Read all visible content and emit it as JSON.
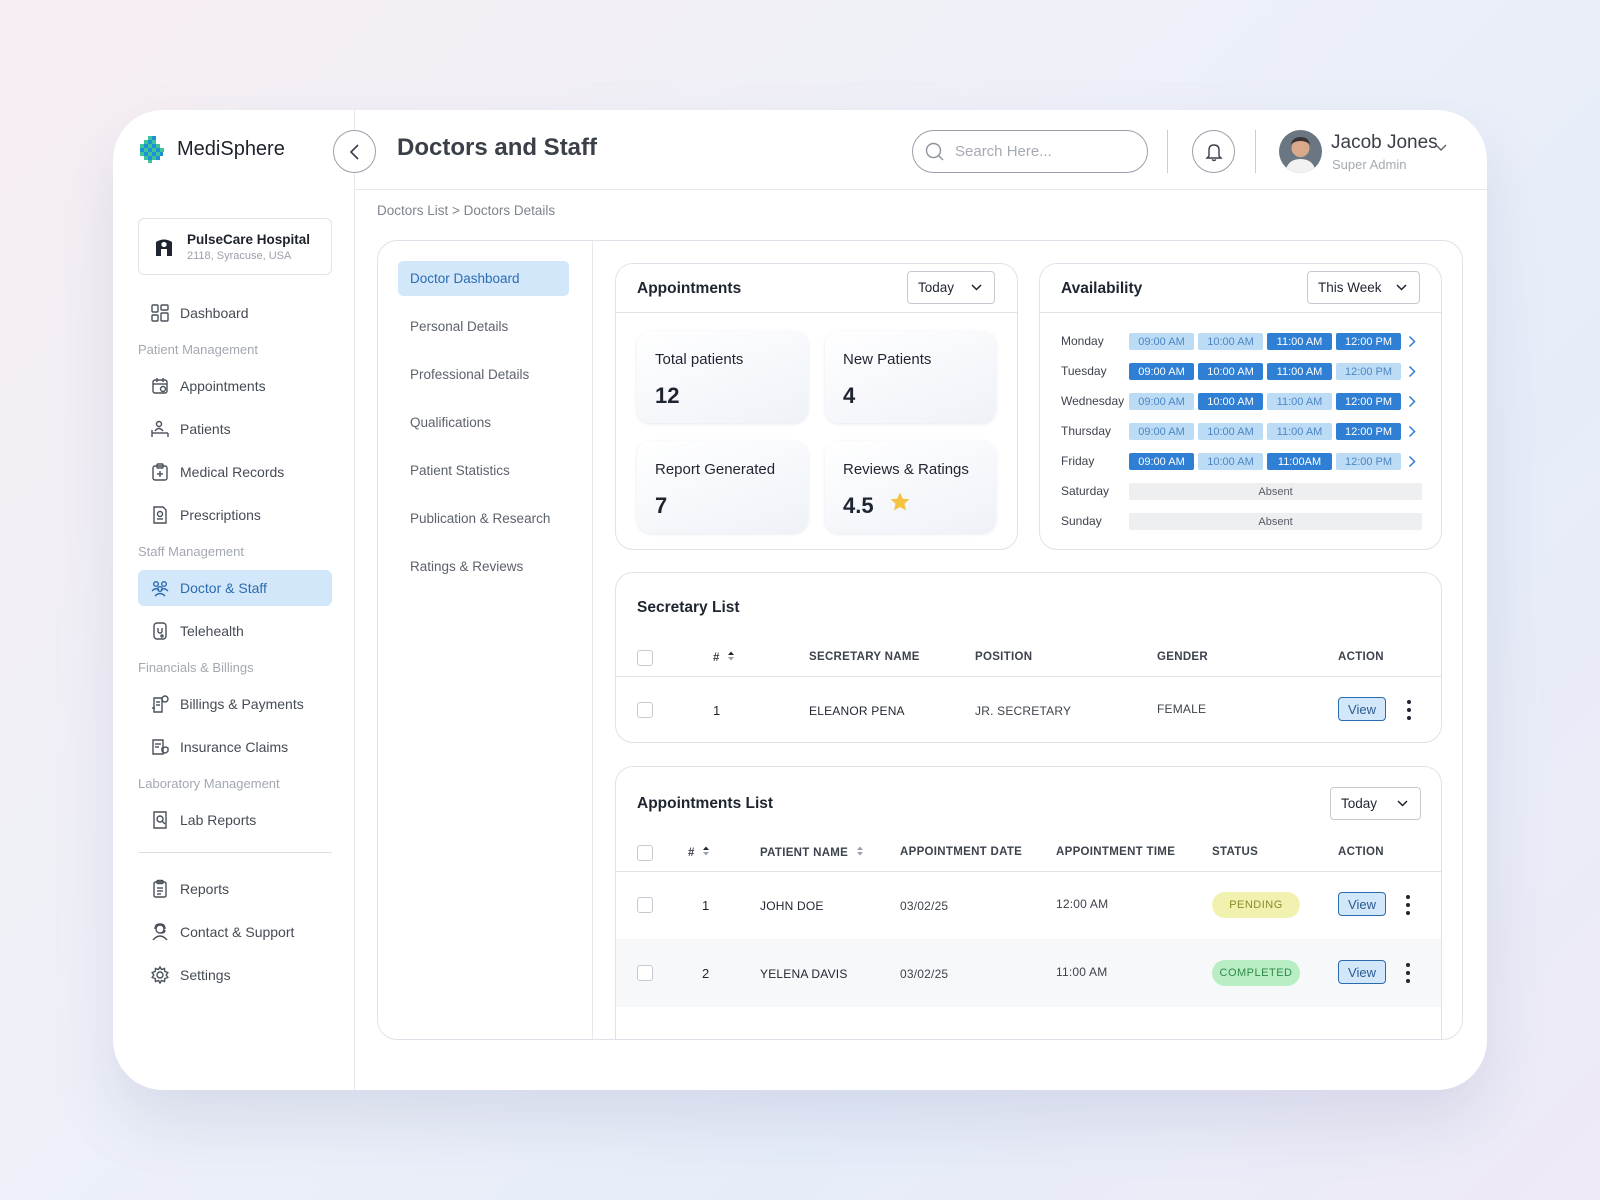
{
  "app": {
    "name": "MediSphere",
    "hospital": {
      "name": "PulseCare Hospital",
      "address": "2118, Syracuse, USA"
    }
  },
  "nav": {
    "dashboard": "Dashboard",
    "patient_section": "Patient Management",
    "appointments": "Appointments",
    "patients": "Patients",
    "medical_records": "Medical Records",
    "prescriptions": "Prescriptions",
    "staff_section": "Staff Management",
    "doctor_staff": "Doctor & Staff",
    "telehealth": "Telehealth",
    "finance_section": "Financials & Billings",
    "billings": "Billings & Payments",
    "insurance": "Insurance Claims",
    "lab_section": "Laboratory Management",
    "lab_reports": "Lab Reports",
    "reports": "Reports",
    "contact": "Contact & Support",
    "settings": "Settings"
  },
  "header": {
    "title": "Doctors and Staff",
    "search_placeholder": "Search Here...",
    "user_name": "Jacob Jones",
    "user_role": "Super Admin"
  },
  "breadcrumb": "Doctors List > Doctors Details",
  "subnav": [
    "Doctor Dashboard",
    "Personal Details",
    "Professional Details",
    "Qualifications",
    "Patient Statistics",
    "Publication & Research",
    "Ratings & Reviews"
  ],
  "appointments_card": {
    "title": "Appointments",
    "filter": "Today",
    "stats": [
      {
        "label": "Total patients",
        "value": "12"
      },
      {
        "label": "New Patients",
        "value": "4"
      },
      {
        "label": "Report Generated",
        "value": "7"
      },
      {
        "label": "Reviews & Ratings",
        "value": "4.5"
      }
    ]
  },
  "availability": {
    "title": "Availability",
    "filter": "This Week",
    "days": [
      {
        "day": "Monday",
        "slots": [
          {
            "t": "09:00 AM",
            "on": false
          },
          {
            "t": "10:00 AM",
            "on": false
          },
          {
            "t": "11:00 AM",
            "on": true
          },
          {
            "t": "12:00 PM",
            "on": true
          }
        ]
      },
      {
        "day": "Tuesday",
        "slots": [
          {
            "t": "09:00 AM",
            "on": true
          },
          {
            "t": "10:00 AM",
            "on": true
          },
          {
            "t": "11:00 AM",
            "on": true
          },
          {
            "t": "12:00 PM",
            "on": false
          }
        ]
      },
      {
        "day": "Wednesday",
        "slots": [
          {
            "t": "09:00 AM",
            "on": false
          },
          {
            "t": "10:00 AM",
            "on": true
          },
          {
            "t": "11:00 AM",
            "on": false
          },
          {
            "t": "12:00 PM",
            "on": true
          }
        ]
      },
      {
        "day": "Thursday",
        "slots": [
          {
            "t": "09:00 AM",
            "on": false
          },
          {
            "t": "10:00 AM",
            "on": false
          },
          {
            "t": "11:00 AM",
            "on": false
          },
          {
            "t": "12:00 PM",
            "on": true
          }
        ]
      },
      {
        "day": "Friday",
        "slots": [
          {
            "t": "09:00 AM",
            "on": true
          },
          {
            "t": "10:00 AM",
            "on": false
          },
          {
            "t": "11:00AM",
            "on": true
          },
          {
            "t": "12:00 PM",
            "on": false
          }
        ]
      },
      {
        "day": "Saturday",
        "absent": "Absent"
      },
      {
        "day": "Sunday",
        "absent": "Absent"
      }
    ]
  },
  "secretary": {
    "title": "Secretary List",
    "headers": {
      "num": "#",
      "name": "SECRETARY NAME",
      "position": "POSITION",
      "gender": "GENDER",
      "action": "ACTION"
    },
    "rows": [
      {
        "num": "1",
        "name": "ELEANOR PENA",
        "position": "JR. SECRETARY",
        "gender": "FEMALE",
        "action": "View"
      }
    ]
  },
  "appointments_list": {
    "title": "Appointments List",
    "filter": "Today",
    "headers": {
      "num": "#",
      "patient": "PATIENT NAME",
      "date": "APPOINTMENT DATE",
      "time": "APPOINTMENT TIME",
      "status": "STATUS",
      "action": "ACTION"
    },
    "rows": [
      {
        "num": "1",
        "patient": "JOHN DOE",
        "date": "03/02/25",
        "time": "12:00 AM",
        "status": "PENDING",
        "action": "View"
      },
      {
        "num": "2",
        "patient": "YELENA DAVIS",
        "date": "03/02/25",
        "time": "11:00 AM",
        "status": "COMPLETED",
        "action": "View"
      }
    ]
  },
  "colors": {
    "accent": "#2b6cb0",
    "active_bg": "#d3e7fb",
    "pending_bg": "#f1f2b0",
    "pending_text": "#8a8a2a",
    "completed_bg": "#b9eec4",
    "completed_text": "#2e8b4a"
  }
}
